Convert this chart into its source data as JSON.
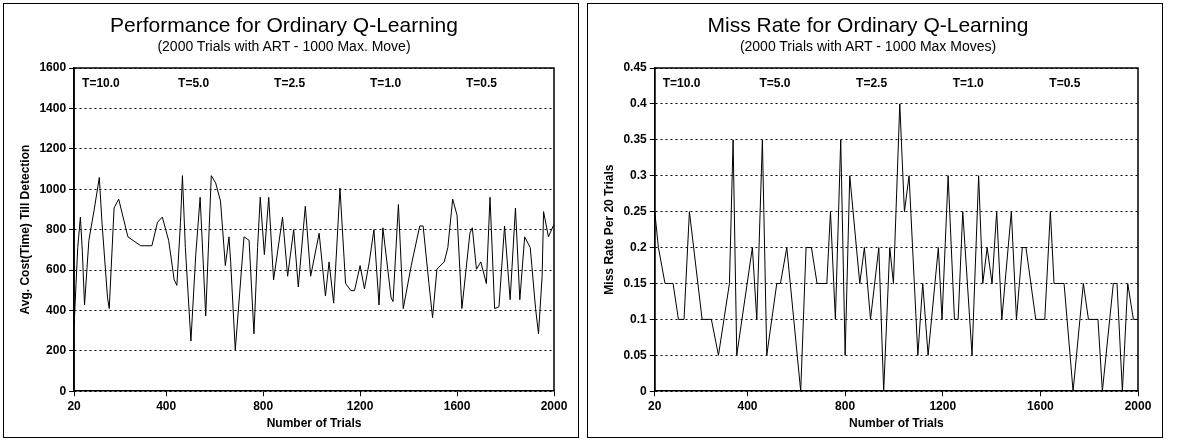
{
  "chart_data": [
    {
      "type": "line",
      "title": "Performance for Ordinary Q-Learning",
      "subtitle": "(2000 Trials with ART - 1000 Max. Move)",
      "xlabel": "Number of Trials",
      "ylabel": "Avg. Cost(Time) Till Detection",
      "color": "#000000",
      "x": [
        20,
        28,
        35,
        46,
        54,
        63,
        81,
        104,
        124,
        135,
        158,
        165,
        185,
        204,
        242,
        295,
        341,
        364,
        384,
        410,
        433,
        444,
        459,
        467,
        479,
        502,
        522,
        540,
        563,
        586,
        604,
        624,
        644,
        659,
        666,
        685,
        721,
        742,
        762,
        777,
        788,
        805,
        823,
        843,
        880,
        901,
        926,
        945,
        974,
        996,
        1031,
        1057,
        1072,
        1091,
        1117,
        1140,
        1162,
        1177,
        1200,
        1218,
        1238,
        1257,
        1278,
        1294,
        1328,
        1336,
        1358,
        1378,
        1411,
        1446,
        1460,
        1484,
        1499,
        1517,
        1547,
        1562,
        1582,
        1600,
        1620,
        1653,
        1663,
        1680,
        1698,
        1721,
        1736,
        1755,
        1773,
        1796,
        1819,
        1841,
        1859,
        1879,
        1902,
        1924,
        1936,
        1951,
        1957,
        1977,
        2000
      ],
      "values": [
        320,
        533,
        711,
        862,
        693,
        427,
        747,
        907,
        1058,
        836,
        462,
        409,
        907,
        951,
        764,
        720,
        720,
        836,
        862,
        747,
        551,
        524,
        836,
        1067,
        711,
        249,
        676,
        960,
        373,
        1067,
        1031,
        942,
        622,
        764,
        640,
        204,
        764,
        747,
        284,
        711,
        960,
        676,
        960,
        551,
        862,
        569,
        800,
        516,
        916,
        569,
        782,
        471,
        640,
        436,
        1005,
        533,
        498,
        498,
        622,
        507,
        640,
        800,
        427,
        809,
        462,
        444,
        924,
        409,
        622,
        818,
        818,
        533,
        364,
        604,
        640,
        711,
        951,
        871,
        409,
        782,
        809,
        604,
        640,
        533,
        960,
        409,
        418,
        818,
        453,
        907,
        453,
        764,
        711,
        409,
        284,
        569,
        889,
        764,
        827
      ],
      "xlim": [
        20,
        2000
      ],
      "xticks": [
        20,
        400,
        800,
        1200,
        1600,
        2000
      ],
      "ylim": [
        0,
        1600
      ],
      "yticks": [
        0,
        200,
        400,
        600,
        800,
        1000,
        1200,
        1400,
        1600
      ],
      "grid": "y",
      "annotations": [
        "T=10.0",
        "T=5.0",
        "T=2.5",
        "T=1.0",
        "T=0.5"
      ]
    },
    {
      "type": "line",
      "title": "Miss Rate for Ordinary Q-Learning",
      "subtitle": "(2000 Trials with ART - 1000 Max Moves)",
      "xlabel": "Number of Trials",
      "ylabel": "Miss Rate Per 20 Trials",
      "color": "#000000",
      "x": [
        20,
        35,
        62,
        95,
        117,
        140,
        162,
        214,
        252,
        281,
        326,
        341,
        356,
        420,
        438,
        461,
        479,
        520,
        535,
        561,
        618,
        640,
        662,
        685,
        725,
        740,
        760,
        782,
        800,
        819,
        860,
        879,
        904,
        938,
        958,
        983,
        998,
        1024,
        1043,
        1062,
        1098,
        1118,
        1140,
        1182,
        1197,
        1222,
        1248,
        1263,
        1282,
        1320,
        1347,
        1364,
        1382,
        1402,
        1421,
        1442,
        1481,
        1502,
        1526,
        1541,
        1581,
        1618,
        1641,
        1656,
        1697,
        1734,
        1776,
        1797,
        1836,
        1854,
        1899,
        1914,
        1936,
        1958,
        1981,
        2000
      ],
      "values": [
        0.25,
        0.2,
        0.15,
        0.15,
        0.1,
        0.1,
        0.25,
        0.1,
        0.1,
        0.05,
        0.15,
        0.35,
        0.05,
        0.2,
        0.1,
        0.35,
        0.05,
        0.15,
        0.15,
        0.2,
        0,
        0.2,
        0.2,
        0.15,
        0.15,
        0.25,
        0.1,
        0.35,
        0.05,
        0.3,
        0.15,
        0.2,
        0.1,
        0.2,
        0,
        0.2,
        0.15,
        0.4,
        0.25,
        0.3,
        0.05,
        0.15,
        0.05,
        0.2,
        0.1,
        0.3,
        0.1,
        0.1,
        0.25,
        0.05,
        0.3,
        0.15,
        0.2,
        0.15,
        0.25,
        0.1,
        0.25,
        0.1,
        0.2,
        0.2,
        0.1,
        0.1,
        0.25,
        0.15,
        0.15,
        0,
        0.15,
        0.1,
        0.1,
        0,
        0.15,
        0.15,
        0,
        0.15,
        0.1,
        0.1
      ],
      "xlim": [
        20,
        2000
      ],
      "xticks": [
        20,
        400,
        800,
        1200,
        1600,
        2000
      ],
      "ylim": [
        0,
        0.45
      ],
      "yticks": [
        0,
        0.05,
        0.1,
        0.15,
        0.2,
        0.25,
        0.3,
        0.35,
        0.4,
        0.45
      ],
      "grid": "y",
      "annotations": [
        "T=10.0",
        "T=5.0",
        "T=2.5",
        "T=1.0",
        "T=0.5"
      ]
    }
  ]
}
